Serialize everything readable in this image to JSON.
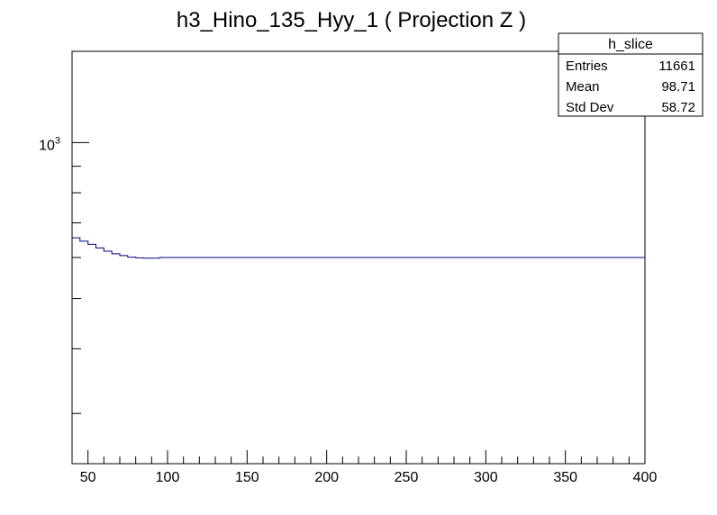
{
  "chart_data": {
    "type": "histogram",
    "title": "h3_Hino_135_Hyy_1 ( Projection Z )",
    "xlabel": "",
    "ylabel": "",
    "xlim": [
      40,
      400
    ],
    "ylim": [
      240,
      1500
    ],
    "yscale": "log",
    "grid": false,
    "x_ticks": [
      50,
      100,
      150,
      200,
      250,
      300,
      350,
      400
    ],
    "y_tick_labels": [
      {
        "base": "10",
        "exponent": "3",
        "value": 1000
      }
    ],
    "line_color": "#000080",
    "bin_width": 5,
    "bins": [
      {
        "x_low": 40,
        "x_high": 45,
        "y": 655
      },
      {
        "x_low": 45,
        "x_high": 50,
        "y": 645
      },
      {
        "x_low": 50,
        "x_high": 55,
        "y": 636
      },
      {
        "x_low": 55,
        "x_high": 60,
        "y": 626
      },
      {
        "x_low": 60,
        "x_high": 65,
        "y": 617
      },
      {
        "x_low": 65,
        "x_high": 70,
        "y": 610
      },
      {
        "x_low": 70,
        "x_high": 75,
        "y": 605
      },
      {
        "x_low": 75,
        "x_high": 80,
        "y": 601
      },
      {
        "x_low": 80,
        "x_high": 85,
        "y": 599
      },
      {
        "x_low": 85,
        "x_high": 95,
        "y": 598
      },
      {
        "x_low": 95,
        "x_high": 400,
        "y": 600
      }
    ],
    "stats_box": {
      "title": "h_slice",
      "placement": "top-right",
      "rows": [
        {
          "label": "Entries",
          "value": "11661"
        },
        {
          "label": "Mean",
          "value": "98.71"
        },
        {
          "label": "Std Dev",
          "value": "58.72"
        }
      ]
    }
  }
}
